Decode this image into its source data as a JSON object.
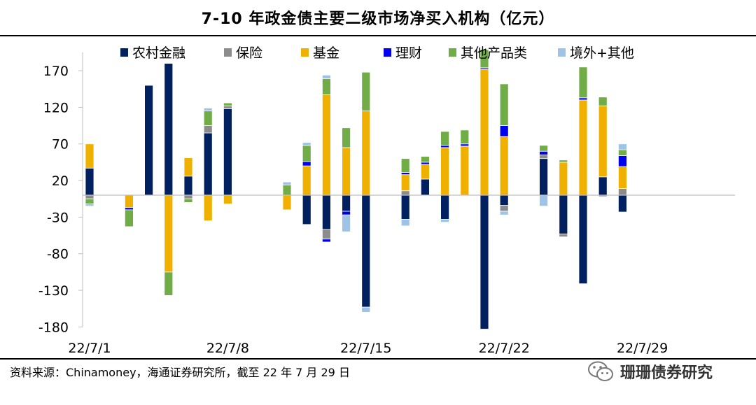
{
  "chart_data": {
    "type": "bar",
    "stacked": true,
    "title": "7-10 年政金债主要二级市场净买入机构（亿元）",
    "ylim": [
      -180,
      195
    ],
    "yticks": [
      170,
      120,
      70,
      20,
      -30,
      -80,
      -130,
      -180
    ],
    "x_labels": [
      "22/7/1",
      "22/7/8",
      "22/7/15",
      "22/7/22",
      "22/7/29"
    ],
    "legend_position": "top",
    "series": [
      {
        "name": "农村金融",
        "color": "#002060",
        "values": [
          37,
          null,
          0,
          150,
          180,
          26,
          85,
          118,
          null,
          null,
          0,
          -40,
          -47,
          -22,
          -153,
          null,
          -33,
          22,
          -33,
          0,
          -183,
          -14,
          null,
          50,
          -53,
          -121,
          25,
          -23
        ]
      },
      {
        "name": "保险",
        "color": "#8c8c8c",
        "values": [
          -5,
          null,
          0,
          0,
          0,
          -5,
          10,
          4,
          null,
          null,
          0,
          0,
          -13,
          0,
          0,
          null,
          6,
          0,
          0,
          0,
          0,
          -8,
          null,
          5,
          -4,
          0,
          -2,
          9
        ]
      },
      {
        "name": "基金",
        "color": "#f0b000",
        "values": [
          33,
          null,
          -17,
          0,
          -105,
          25,
          -35,
          -12,
          null,
          null,
          -20,
          40,
          137,
          65,
          115,
          null,
          22,
          20,
          65,
          67,
          172,
          80,
          null,
          0,
          45,
          130,
          97,
          30
        ]
      },
      {
        "name": "理财",
        "color": "#0000ee",
        "values": [
          0,
          null,
          -3,
          0,
          0,
          0,
          0,
          0,
          null,
          null,
          0,
          6,
          -4,
          -5,
          0,
          null,
          3,
          3,
          3,
          3,
          2,
          15,
          null,
          5,
          0,
          3,
          0,
          15
        ]
      },
      {
        "name": "其他产品类",
        "color": "#70ad47",
        "values": [
          -7,
          null,
          -23,
          0,
          -32,
          -5,
          20,
          4,
          null,
          null,
          14,
          22,
          22,
          27,
          53,
          null,
          19,
          8,
          19,
          19,
          25,
          57,
          null,
          8,
          3,
          42,
          12,
          8
        ]
      },
      {
        "name": "境外+其他",
        "color": "#9dc3e6",
        "values": [
          -3,
          null,
          0,
          0,
          0,
          0,
          4,
          0,
          null,
          null,
          4,
          4,
          5,
          -23,
          -7,
          null,
          -9,
          0,
          -4,
          0,
          0,
          -5,
          null,
          -15,
          0,
          0,
          0,
          8
        ]
      }
    ]
  },
  "source_text": "资料来源：Chinamoney，海通证券研究所，截至 22 年 7 月 29 日",
  "watermark": "珊珊债券研究"
}
